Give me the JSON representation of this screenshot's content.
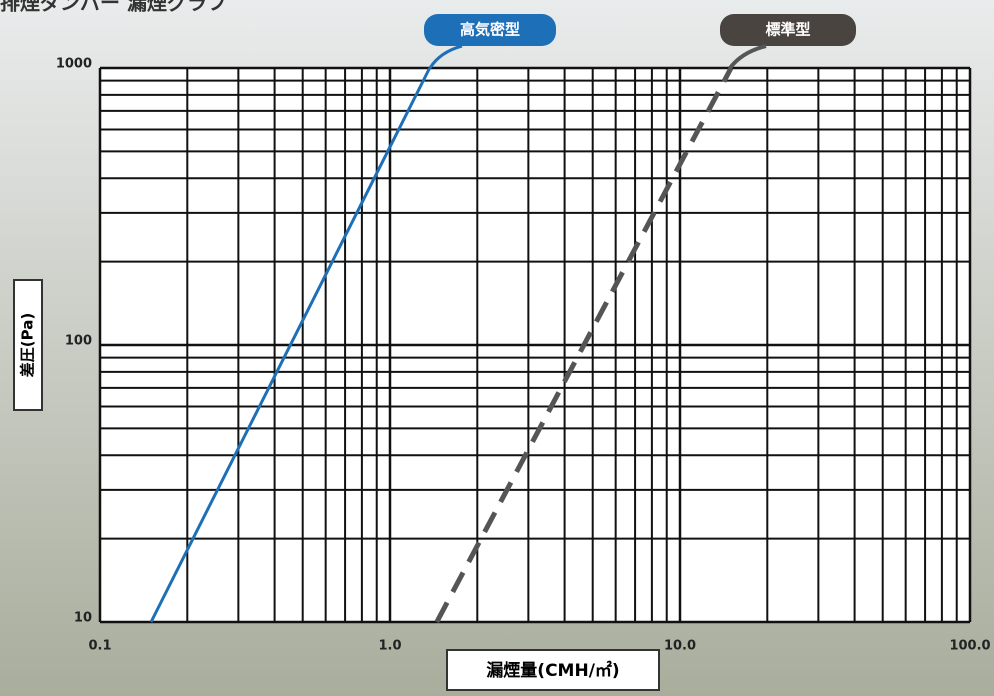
{
  "chart_data": {
    "type": "line",
    "title": "排煙ダンパー 漏煙グラフ",
    "x_label": "漏煙量(CMH/㎡)",
    "y_label": "差圧(Pa)",
    "log_x": true,
    "log_y": true,
    "grid": true,
    "xlim": [
      0.1,
      100
    ],
    "ylim": [
      10,
      1000
    ],
    "xticks": [
      0.1,
      {
        "value": 1,
        "label": "1.0"
      },
      {
        "value": 10,
        "label": "10.0"
      },
      {
        "value": 100,
        "label": "100.0"
      }
    ],
    "yticks": [
      10,
      100,
      1000
    ],
    "minor_xticks": [
      0.2,
      0.3,
      0.4,
      0.5,
      0.6,
      0.7,
      0.8,
      0.9,
      2,
      3,
      4,
      5,
      6,
      7,
      8,
      9,
      20,
      30,
      40,
      50,
      60,
      70,
      80,
      90
    ],
    "minor_yticks": [
      20,
      30,
      40,
      50,
      60,
      70,
      80,
      90,
      200,
      300,
      400,
      500,
      600,
      700,
      800,
      900
    ],
    "series": [
      {
        "name": "高気密型",
        "color": "#1d6fb8",
        "dashed": false,
        "x": [
          0.15,
          1.37
        ],
        "values": [
          10,
          1000
        ]
      },
      {
        "name": "標準型",
        "color": "#555555",
        "dashed": true,
        "x": [
          1.45,
          15
        ],
        "values": [
          10,
          1000
        ]
      }
    ]
  }
}
